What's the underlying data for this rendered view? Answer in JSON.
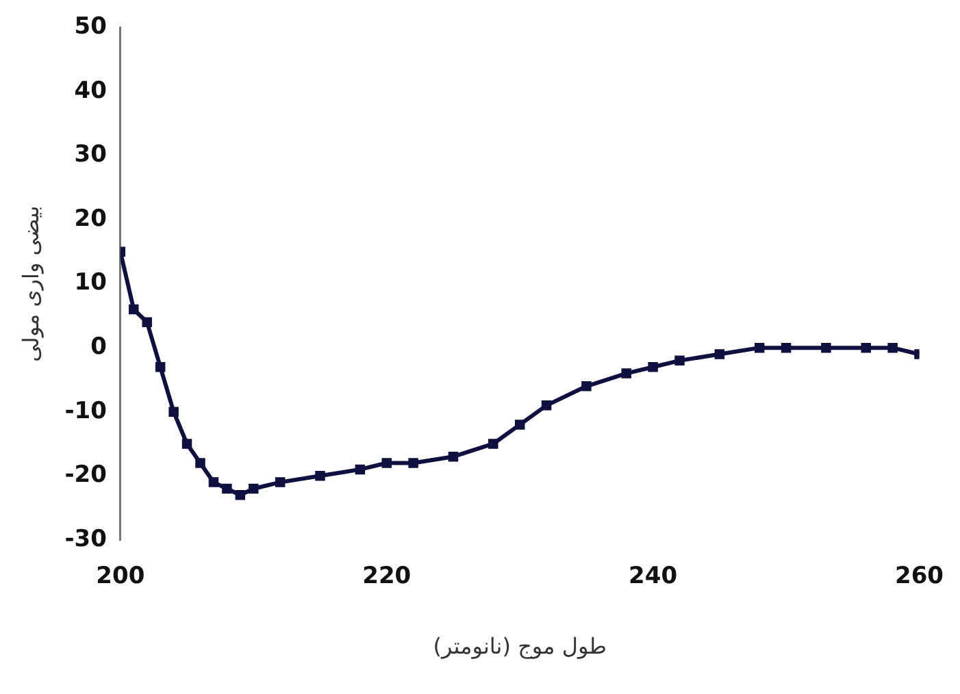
{
  "chart_data": {
    "type": "line",
    "xlabel": "طول موج (نانومتر)",
    "ylabel": "بیضی واری مولی",
    "x": [
      200,
      201,
      202,
      203,
      204,
      205,
      206,
      207,
      208,
      209,
      210,
      212,
      215,
      218,
      220,
      222,
      225,
      228,
      230,
      232,
      235,
      238,
      240,
      242,
      245,
      248,
      250,
      253,
      256,
      258,
      260
    ],
    "series": [
      {
        "color": "#101040",
        "values": [
          15,
          6,
          4,
          -3,
          -10,
          -15,
          -18,
          -21,
          -22,
          -23,
          -22,
          -21,
          -20,
          -19,
          -18,
          -18,
          -17,
          -15,
          -12,
          -9,
          -6,
          -4,
          -3,
          -2,
          -1,
          0,
          0,
          0,
          0,
          0,
          -1
        ]
      }
    ],
    "xlim": [
      200,
      260
    ],
    "xticks": [
      200,
      220,
      240,
      260
    ],
    "ylim": [
      -30,
      50
    ],
    "yticks": [
      -30,
      -20,
      -10,
      0,
      10,
      20,
      30,
      40,
      50
    ],
    "grid": false,
    "legend": false,
    "marker": "square",
    "line_style": "solid"
  }
}
